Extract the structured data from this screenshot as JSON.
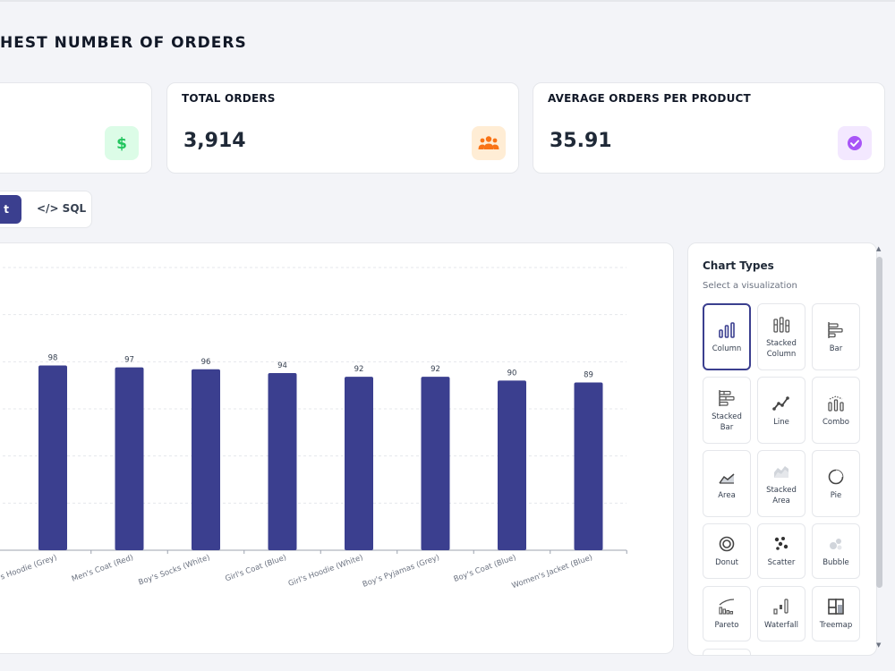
{
  "page": {
    "title": "HEST NUMBER OF ORDERS"
  },
  "cards": [
    {
      "label": "",
      "value": "",
      "icon": "dollar-icon",
      "color": "#22c55e",
      "bg": "#dcfce7"
    },
    {
      "label": "TOTAL ORDERS",
      "value": "3,914",
      "icon": "users-icon",
      "color": "#f97316",
      "bg": "#ffedd5"
    },
    {
      "label": "AVERAGE ORDERS PER PRODUCT",
      "value": "35.91",
      "icon": "check-circle-icon",
      "color": "#a855f7",
      "bg": "#f3e8ff"
    }
  ],
  "view_toggle": {
    "active_label": "t",
    "sql_label": "</> SQL"
  },
  "chart_types": {
    "title": "Chart Types",
    "subtitle": "Select a visualization",
    "selected": "Column",
    "items": [
      {
        "label": "Column",
        "icon": "column-chart-icon"
      },
      {
        "label": "Stacked Column",
        "icon": "stacked-column-icon"
      },
      {
        "label": "Bar",
        "icon": "bar-chart-icon"
      },
      {
        "label": "Stacked Bar",
        "icon": "stacked-bar-icon"
      },
      {
        "label": "Line",
        "icon": "line-chart-icon"
      },
      {
        "label": "Combo",
        "icon": "combo-chart-icon"
      },
      {
        "label": "Area",
        "icon": "area-chart-icon"
      },
      {
        "label": "Stacked Area",
        "icon": "stacked-area-icon"
      },
      {
        "label": "Pie",
        "icon": "pie-chart-icon"
      },
      {
        "label": "Donut",
        "icon": "donut-chart-icon"
      },
      {
        "label": "Scatter",
        "icon": "scatter-chart-icon"
      },
      {
        "label": "Bubble",
        "icon": "bubble-chart-icon"
      },
      {
        "label": "Pareto",
        "icon": "pareto-chart-icon"
      },
      {
        "label": "Waterfall",
        "icon": "waterfall-chart-icon"
      },
      {
        "label": "Treemap",
        "icon": "treemap-chart-icon"
      }
    ]
  },
  "colors": {
    "accent": "#3b3f8f",
    "bar": "#3b3f8f"
  },
  "chart_data": {
    "type": "bar",
    "categories": [
      "Boy's Hoodie (Grey)",
      "Men's Coat (Red)",
      "Boy's Socks (White)",
      "Girl's Coat (Blue)",
      "Girl's Hoodie (White)",
      "Boy's Pyjamas (Grey)",
      "Boy's Coat (Blue)",
      "Women's Jacket (Blue)"
    ],
    "category_labels_shown": [
      "'s Hoodie (Grey)",
      "Men's Coat (Red)",
      "Boy's Socks (White)",
      "Girl's Coat (Blue)",
      "Girl's Hoodie (White)",
      "Boy's Pyjamas (Grey)",
      "Boy's Coat (Blue)",
      "Women's Jacket (Blue)"
    ],
    "values": [
      98,
      97,
      96,
      94,
      92,
      92,
      90,
      89
    ],
    "data_labels": [
      "98",
      "97",
      "96",
      "94",
      "92",
      "92",
      "90",
      "89"
    ],
    "ylim": [
      0,
      150
    ],
    "grid": true
  }
}
